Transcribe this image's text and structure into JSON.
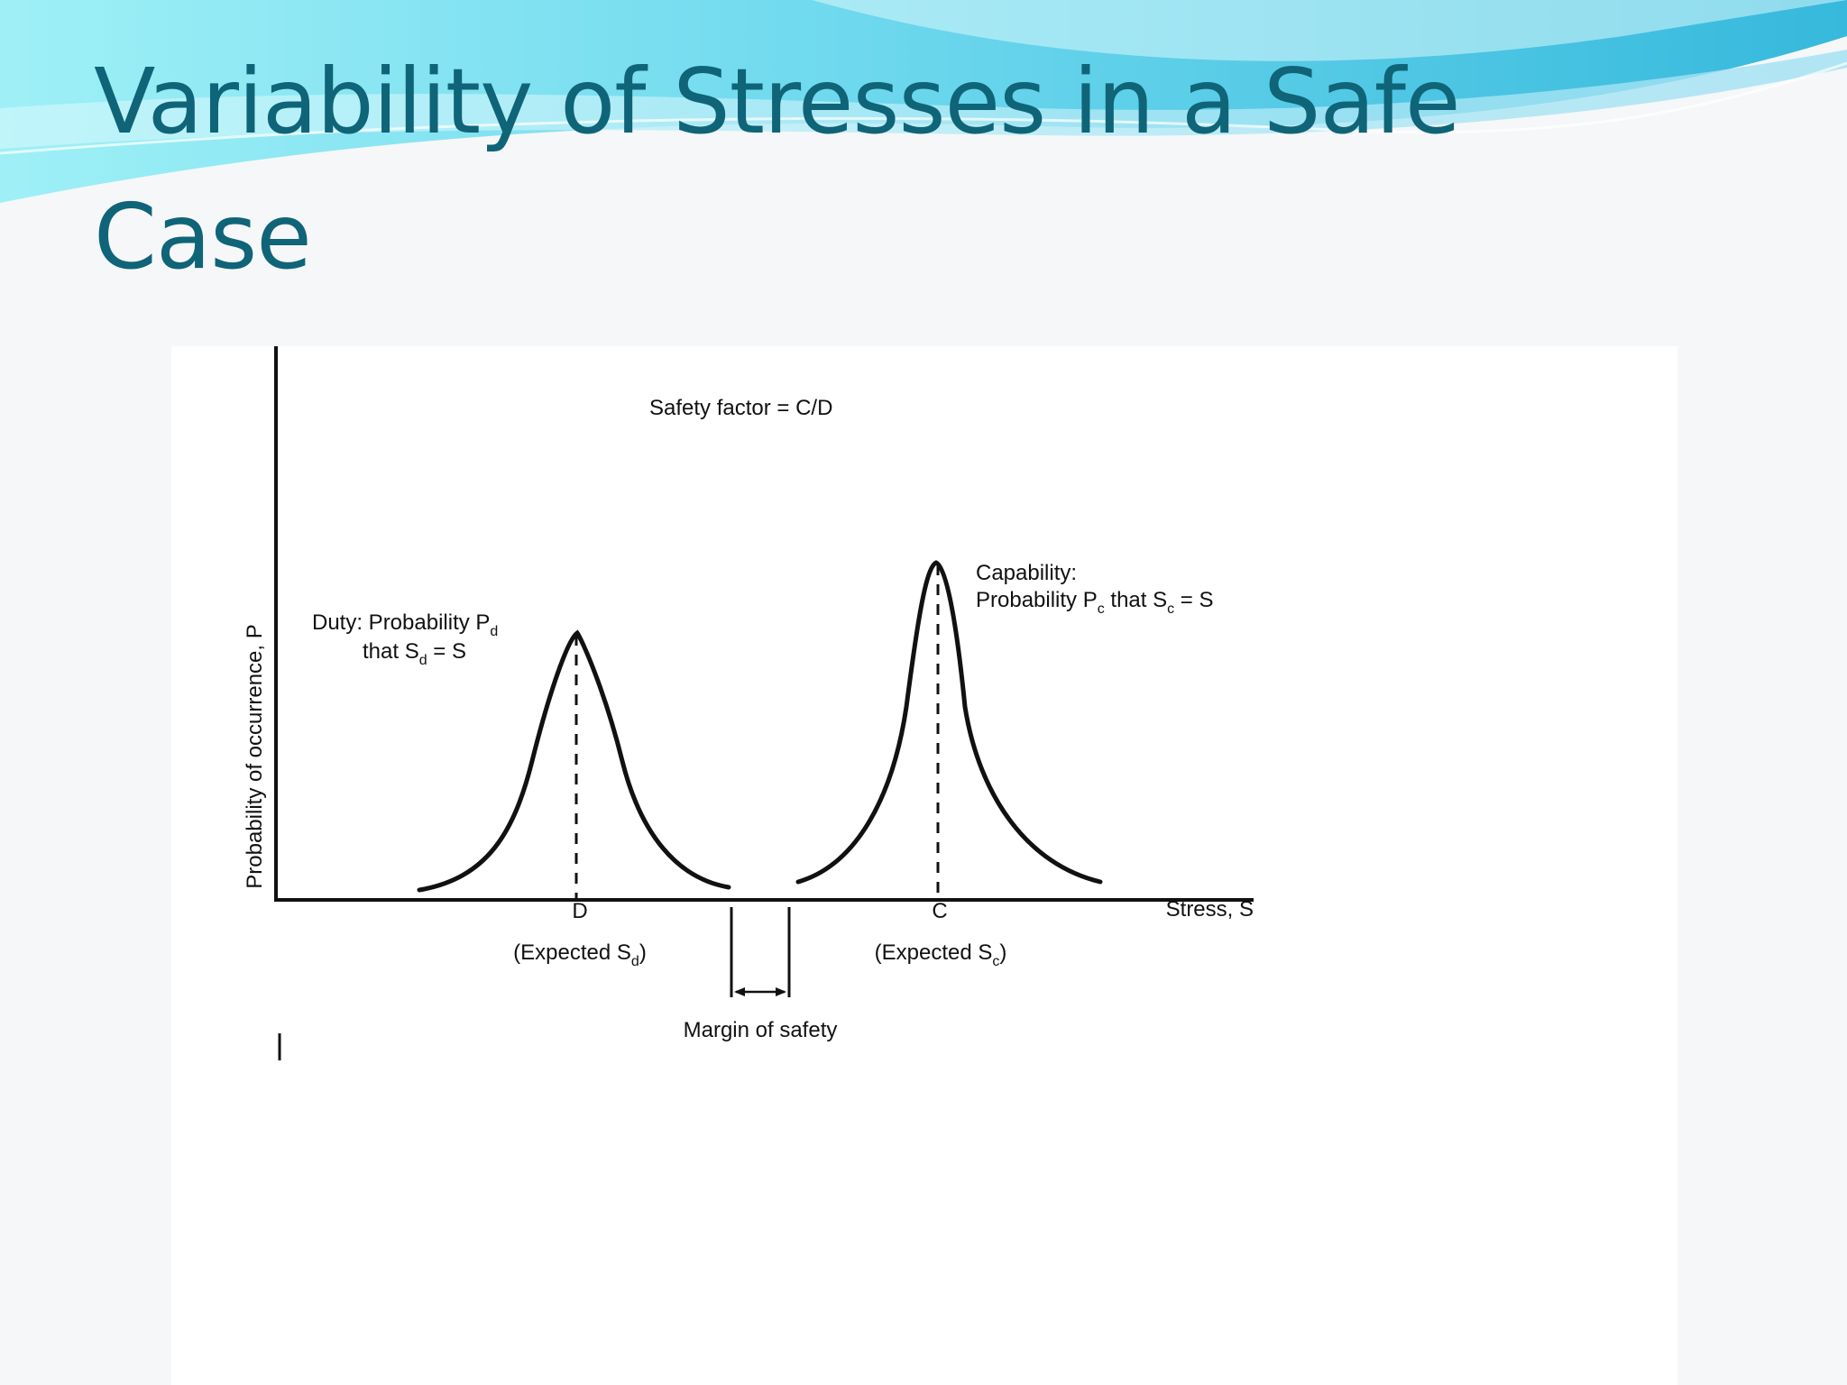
{
  "slide": {
    "title": "Variability of Stresses in a Safe Case"
  },
  "figure": {
    "safety_factor_label": "Safety factor = C/D",
    "y_axis_label": "Probability of occurrence, P",
    "x_axis_label": "Stress, S",
    "duty": {
      "line1_prefix": "Duty: Probability P",
      "line1_sub": "d",
      "line2_prefix": "that S",
      "line2_sub": "d",
      "line2_suffix": " = S",
      "marker": "D",
      "expected_prefix": "(Expected S",
      "expected_sub": "d",
      "expected_suffix": ")"
    },
    "capability": {
      "line1": "Capability:",
      "line2_prefix": "Probability P",
      "line2_sub": "c",
      "line2_mid": " that S",
      "line2_sub2": "c",
      "line2_suffix": " = S",
      "marker": "C",
      "expected_prefix": "(Expected S",
      "expected_sub": "c",
      "expected_suffix": ")"
    },
    "margin_label": "Margin of safety",
    "colors": {
      "title": "#0f6478",
      "ink": "#111111",
      "wave_light": "#8fe6f2",
      "wave_dark": "#1ea7c9"
    }
  }
}
